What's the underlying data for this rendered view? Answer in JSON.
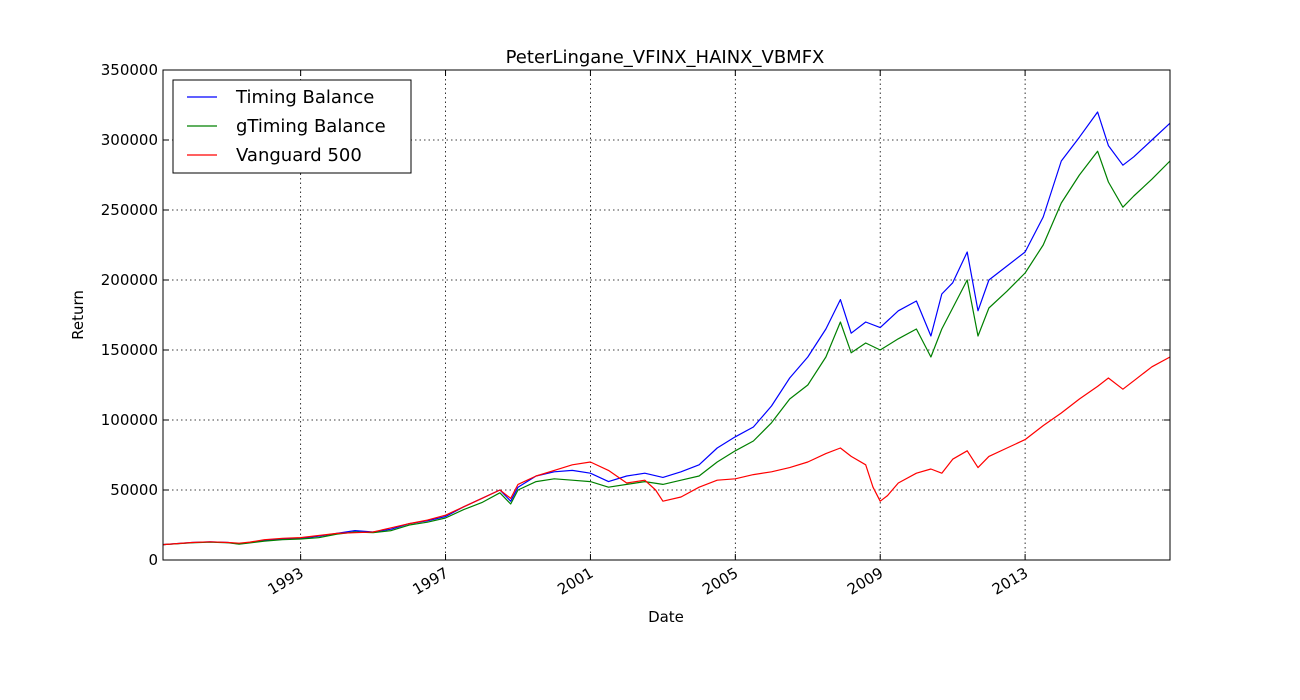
{
  "chart_data": {
    "type": "line",
    "title": "PeterLingane_VFINX_HAINX_VBMFX",
    "xlabel": "Date",
    "ylabel": "Return",
    "xlim": [
      1989.2,
      2017.0
    ],
    "ylim": [
      0,
      350000
    ],
    "grid": true,
    "legend_position": "top-left",
    "x_ticks": [
      1993,
      1997,
      2001,
      2005,
      2009,
      2013
    ],
    "x_tick_labels": [
      "1993",
      "1997",
      "2001",
      "2005",
      "2009",
      "2013"
    ],
    "y_ticks": [
      0,
      50000,
      100000,
      150000,
      200000,
      250000,
      300000,
      350000
    ],
    "y_tick_labels": [
      "0",
      "50000",
      "100000",
      "150000",
      "200000",
      "250000",
      "300000",
      "350000"
    ],
    "series": [
      {
        "name": "Timing Balance",
        "color": "#0000ff",
        "x": [
          1989.2,
          1990.0,
          1990.5,
          1991.0,
          1991.3,
          1991.6,
          1992.0,
          1992.5,
          1993.0,
          1993.5,
          1994.0,
          1994.5,
          1995.0,
          1995.5,
          1996.0,
          1996.5,
          1997.0,
          1997.5,
          1998.0,
          1998.5,
          1998.8,
          1999.0,
          1999.5,
          2000.0,
          2000.5,
          2001.0,
          2001.5,
          2002.0,
          2002.5,
          2003.0,
          2003.5,
          2004.0,
          2004.5,
          2005.0,
          2005.5,
          2006.0,
          2006.5,
          2007.0,
          2007.5,
          2007.9,
          2008.2,
          2008.6,
          2009.0,
          2009.5,
          2010.0,
          2010.4,
          2010.7,
          2011.0,
          2011.4,
          2011.7,
          2012.0,
          2012.5,
          2013.0,
          2013.5,
          2014.0,
          2014.5,
          2015.0,
          2015.3,
          2015.7,
          2016.0,
          2016.5,
          2017.0
        ],
        "y": [
          11000,
          12500,
          13000,
          12500,
          11500,
          12500,
          14000,
          15000,
          15500,
          17000,
          19000,
          21000,
          20000,
          22000,
          26000,
          28000,
          31000,
          38000,
          44000,
          50000,
          42000,
          52000,
          60000,
          63000,
          64000,
          62000,
          56000,
          60000,
          62000,
          59000,
          63000,
          68000,
          80000,
          88000,
          95000,
          110000,
          130000,
          145000,
          165000,
          186000,
          162000,
          170000,
          166000,
          178000,
          185000,
          160000,
          190000,
          198000,
          220000,
          178000,
          200000,
          210000,
          220000,
          245000,
          285000,
          302000,
          320000,
          296000,
          282000,
          288000,
          300000,
          312000
        ]
      },
      {
        "name": "gTiming Balance",
        "color": "#008000",
        "x": [
          1989.2,
          1990.0,
          1990.5,
          1991.0,
          1991.3,
          1991.6,
          1992.0,
          1992.5,
          1993.0,
          1993.5,
          1994.0,
          1994.5,
          1995.0,
          1995.5,
          1996.0,
          1996.5,
          1997.0,
          1997.5,
          1998.0,
          1998.5,
          1998.8,
          1999.0,
          1999.5,
          2000.0,
          2000.5,
          2001.0,
          2001.5,
          2002.0,
          2002.5,
          2003.0,
          2003.5,
          2004.0,
          2004.5,
          2005.0,
          2005.5,
          2006.0,
          2006.5,
          2007.0,
          2007.5,
          2007.9,
          2008.2,
          2008.6,
          2009.0,
          2009.5,
          2010.0,
          2010.4,
          2010.7,
          2011.0,
          2011.4,
          2011.7,
          2012.0,
          2012.5,
          2013.0,
          2013.5,
          2014.0,
          2014.5,
          2015.0,
          2015.3,
          2015.7,
          2016.0,
          2016.5,
          2017.0
        ],
        "y": [
          11000,
          12300,
          12800,
          12300,
          11300,
          12200,
          13500,
          14500,
          15000,
          16000,
          18500,
          20000,
          19500,
          21000,
          25000,
          27000,
          30000,
          36000,
          41000,
          48000,
          40000,
          50000,
          56000,
          58000,
          57000,
          56000,
          52000,
          54000,
          56000,
          54000,
          57000,
          60000,
          70000,
          78000,
          85000,
          98000,
          115000,
          125000,
          145000,
          170000,
          148000,
          155000,
          150000,
          158000,
          165000,
          145000,
          165000,
          180000,
          200000,
          160000,
          180000,
          192000,
          205000,
          225000,
          255000,
          275000,
          292000,
          270000,
          252000,
          260000,
          272000,
          285000
        ]
      },
      {
        "name": "Vanguard 500",
        "color": "#ff0000",
        "x": [
          1989.2,
          1990.0,
          1990.5,
          1991.0,
          1991.3,
          1991.6,
          1992.0,
          1992.5,
          1993.0,
          1993.5,
          1994.0,
          1994.5,
          1995.0,
          1995.5,
          1996.0,
          1996.5,
          1997.0,
          1997.5,
          1998.0,
          1998.5,
          1998.8,
          1999.0,
          1999.5,
          2000.0,
          2000.5,
          2001.0,
          2001.5,
          2002.0,
          2002.5,
          2002.8,
          2003.0,
          2003.5,
          2004.0,
          2004.5,
          2005.0,
          2005.5,
          2006.0,
          2006.5,
          2007.0,
          2007.5,
          2007.9,
          2008.2,
          2008.6,
          2008.8,
          2009.0,
          2009.2,
          2009.5,
          2010.0,
          2010.4,
          2010.7,
          2011.0,
          2011.4,
          2011.7,
          2012.0,
          2012.5,
          2013.0,
          2013.5,
          2014.0,
          2014.5,
          2015.0,
          2015.3,
          2015.7,
          2016.0,
          2016.5,
          2017.0
        ],
        "y": [
          11000,
          12500,
          13000,
          12500,
          12000,
          12800,
          14500,
          15500,
          16000,
          17500,
          19000,
          19500,
          20000,
          23000,
          26000,
          28500,
          32000,
          38000,
          44000,
          50000,
          44000,
          54000,
          60000,
          64000,
          68000,
          70000,
          64000,
          55000,
          57000,
          50000,
          42000,
          45000,
          52000,
          57000,
          58000,
          61000,
          63000,
          66000,
          70000,
          76000,
          80000,
          74000,
          68000,
          52000,
          42000,
          46000,
          55000,
          62000,
          65000,
          62000,
          72000,
          78000,
          66000,
          74000,
          80000,
          86000,
          96000,
          105000,
          115000,
          124000,
          130000,
          122000,
          128000,
          138000,
          145000
        ]
      }
    ]
  }
}
